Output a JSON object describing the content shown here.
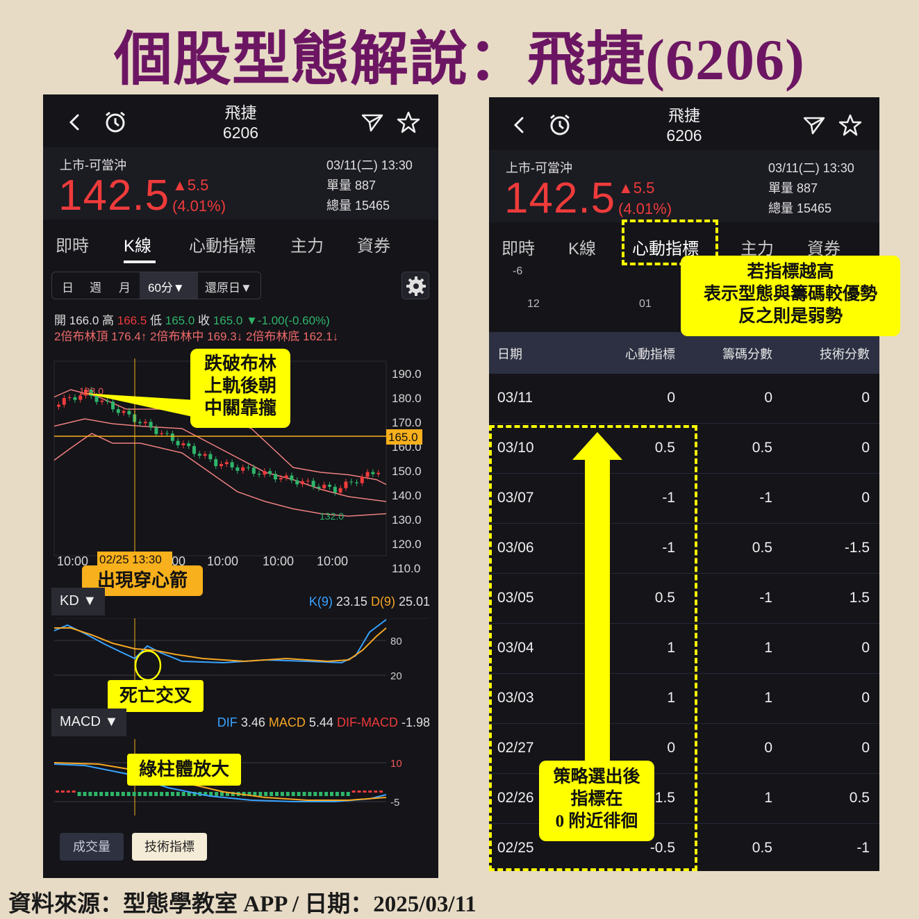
{
  "title": "個股型態解說：飛捷(6206)",
  "source": "資料來源：型態學教室 APP / 日期：2025/03/11",
  "left": {
    "header": {
      "name": "飛捷",
      "code": "6206"
    },
    "quote": {
      "market": "上市-可當沖",
      "price": "142.5",
      "change": "▲5.5",
      "change_pct": "(4.01%)",
      "datetime": "03/11(二) 13:30",
      "unit_volume": "單量 887",
      "total_volume": "總量 15465"
    },
    "tabs": [
      "即時",
      "K線",
      "心動指標",
      "主力",
      "資券"
    ],
    "active_tab": "K線",
    "period_chips": [
      "日",
      "週",
      "月",
      "60分▼",
      "還原日▼"
    ],
    "ohlc": {
      "open_label": "開",
      "open": "166.0",
      "high_label": "高",
      "high": "166.5",
      "low_label": "低",
      "low": "165.0",
      "close_label": "收",
      "close": "165.0",
      "change": "▼-1.00(-0.60%)"
    },
    "bollinger": {
      "upper": "2倍布林頂 176.4↑",
      "middle": "2倍布林中 169.3↓",
      "lower": "2倍布林底 162.1↓"
    },
    "price_axis": [
      "190.0",
      "180.0",
      "170.0",
      "160.0",
      "150.0",
      "140.0",
      "130.0",
      "120.0",
      "110.0"
    ],
    "current_price_tag": "165.0",
    "high_marker": "183.0",
    "low_marker": "132.0",
    "time_axis": [
      "10:00",
      "10:00",
      "10:00",
      "10:00",
      "10:00"
    ],
    "crosshair_label": "02/25 13:30",
    "kd": {
      "label": "KD ▼",
      "k_label": "K(9)",
      "k_value": "23.15",
      "d_label": "D(9)",
      "d_value": "25.01",
      "axis": [
        "80",
        "20"
      ]
    },
    "macd": {
      "label": "MACD ▼",
      "dif_label": "DIF",
      "dif_value": "3.46",
      "macd_label": "MACD",
      "macd_value": "5.44",
      "osc_label": "DIF-MACD",
      "osc_value": "-1.98",
      "axis": [
        "10",
        "-5"
      ]
    },
    "buttons": {
      "volume": "成交量",
      "technical": "技術指標"
    },
    "callouts": {
      "bollinger": [
        "跌破布林",
        "上軌後朝",
        "中關靠攏"
      ],
      "arrow": "出現穿心箭",
      "death_cross": "死亡交叉",
      "green_bars": "綠柱體放大"
    }
  },
  "right": {
    "header": {
      "name": "飛捷",
      "code": "6206"
    },
    "quote": {
      "market": "上市-可當沖",
      "price": "142.5",
      "change": "▲5.5",
      "change_pct": "(4.01%)",
      "datetime": "03/11(二) 13:30",
      "unit_volume": "單量 887",
      "total_volume": "總量 15465"
    },
    "tabs": [
      "即時",
      "K線",
      "心動指標",
      "主力",
      "資券"
    ],
    "active_tab": "心動指標",
    "mini_chart": {
      "y_label": "-6",
      "x_labels": [
        "12",
        "01"
      ]
    },
    "table": {
      "columns": [
        "日期",
        "心動指標",
        "籌碼分數",
        "技術分數"
      ],
      "rows": [
        {
          "date": "03/11",
          "heart": "0",
          "chip": "0",
          "tech": "0"
        },
        {
          "date": "03/10",
          "heart": "0.5",
          "chip": "0.5",
          "tech": "0"
        },
        {
          "date": "03/07",
          "heart": "-1",
          "chip": "-1",
          "tech": "0"
        },
        {
          "date": "03/06",
          "heart": "-1",
          "chip": "0.5",
          "tech": "-1.5"
        },
        {
          "date": "03/05",
          "heart": "0.5",
          "chip": "-1",
          "tech": "1.5"
        },
        {
          "date": "03/04",
          "heart": "1",
          "chip": "1",
          "tech": "0"
        },
        {
          "date": "03/03",
          "heart": "1",
          "chip": "1",
          "tech": "0"
        },
        {
          "date": "02/27",
          "heart": "0",
          "chip": "0",
          "tech": "0"
        },
        {
          "date": "02/26",
          "heart": "1.5",
          "chip": "1",
          "tech": "0.5"
        },
        {
          "date": "02/25",
          "heart": "-0.5",
          "chip": "0.5",
          "tech": "-1"
        }
      ]
    },
    "callouts": {
      "indicator": [
        "若指標越高",
        "表示型態與籌碼較優勢",
        "反之則是弱勢"
      ],
      "strategy": [
        "策略選出後",
        "指標在",
        "0 附近徘徊"
      ]
    }
  },
  "colors": {
    "title": "#6c1663",
    "up": "#ef3b3b",
    "down": "#2fb56a",
    "highlight": "#ffff00",
    "orange": "#f8b01c",
    "bollinger": "#f08080",
    "k_line": "#3aa3ff",
    "d_line": "#f5a623"
  }
}
